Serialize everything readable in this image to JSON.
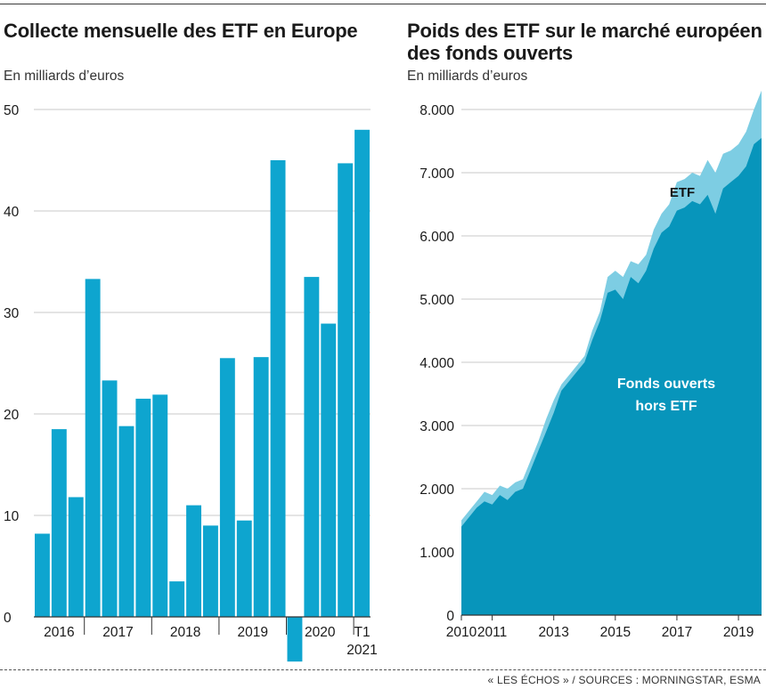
{
  "source": "« LES ÉCHOS » / SOURCES : MORNINGSTAR, ESMA",
  "colors": {
    "bar": "#0ea5cf",
    "area_main": "#0795bb",
    "area_etf": "#7dcde3",
    "grid": "#c9c9c9",
    "axis": "#333333",
    "etf_label": "#111111",
    "area_label": "#ffffff"
  },
  "chart_data": [
    {
      "type": "bar",
      "title": "Collecte mensuelle des ETF en Europe",
      "subtitle": "En milliards d’euros",
      "ylim": [
        -5,
        50
      ],
      "yticks": [
        "0",
        "10",
        "20",
        "30",
        "40",
        "50"
      ],
      "ytick_values": [
        0,
        10,
        20,
        30,
        40,
        50
      ],
      "values": [
        8.2,
        18.5,
        11.8,
        33.3,
        23.3,
        18.8,
        21.5,
        21.9,
        3.5,
        11,
        9,
        25.5,
        9.5,
        25.6,
        45,
        -4.4,
        33.5,
        28.9,
        44.7,
        48
      ],
      "group_labels": [
        "2016",
        "2017",
        "2018",
        "2019",
        "2020",
        "T1"
      ],
      "group_label_extra": "2021",
      "group_bar_spans": [
        [
          0,
          2
        ],
        [
          3,
          6
        ],
        [
          7,
          10
        ],
        [
          11,
          14
        ],
        [
          15,
          18
        ],
        [
          19,
          19
        ]
      ],
      "grid": true
    },
    {
      "type": "area",
      "title": "Poids des ETF sur le marché européen des fonds ouverts",
      "subtitle": "En milliards d’euros",
      "ylim": [
        0,
        8300
      ],
      "xlim": [
        2010,
        2019.75
      ],
      "yticks": [
        "0",
        "1.000",
        "2.000",
        "3.000",
        "4.000",
        "5.000",
        "6.000",
        "7.000",
        "8.000"
      ],
      "ytick_values": [
        0,
        1000,
        2000,
        3000,
        4000,
        5000,
        6000,
        7000,
        8000
      ],
      "xticks": [
        "2010",
        "2011",
        "2013",
        "2015",
        "2017",
        "2019"
      ],
      "xtick_values": [
        2010,
        2011,
        2013,
        2015,
        2017,
        2019
      ],
      "x": [
        2010,
        2010.25,
        2010.5,
        2010.75,
        2011,
        2011.25,
        2011.5,
        2011.75,
        2012,
        2012.25,
        2012.5,
        2012.75,
        2013,
        2013.25,
        2013.5,
        2013.75,
        2014,
        2014.25,
        2014.5,
        2014.75,
        2015,
        2015.25,
        2015.5,
        2015.75,
        2016,
        2016.25,
        2016.5,
        2016.75,
        2017,
        2017.25,
        2017.5,
        2017.75,
        2018,
        2018.25,
        2018.5,
        2018.75,
        2019,
        2019.25,
        2019.5,
        2019.75
      ],
      "series": [
        {
          "name": "Fonds ouverts hors ETF",
          "values": [
            1400,
            1550,
            1700,
            1800,
            1750,
            1900,
            1820,
            1950,
            2000,
            2300,
            2600,
            2900,
            3200,
            3550,
            3700,
            3850,
            4000,
            4350,
            4650,
            5100,
            5150,
            5000,
            5350,
            5250,
            5450,
            5800,
            6050,
            6150,
            6400,
            6450,
            6550,
            6500,
            6650,
            6350,
            6750,
            6850,
            6950,
            7100,
            7450,
            7550
          ]
        },
        {
          "name": "ETF",
          "values": [
            1500,
            1650,
            1800,
            1950,
            1900,
            2050,
            2000,
            2100,
            2150,
            2450,
            2750,
            3100,
            3400,
            3650,
            3800,
            3950,
            4100,
            4500,
            4800,
            5350,
            5450,
            5350,
            5600,
            5550,
            5700,
            6100,
            6350,
            6500,
            6850,
            6900,
            7000,
            6950,
            7200,
            7000,
            7300,
            7350,
            7450,
            7650,
            8000,
            8300
          ]
        }
      ],
      "labels": [
        "ETF",
        "Fonds ouverts",
        "hors ETF"
      ],
      "grid": true
    }
  ]
}
